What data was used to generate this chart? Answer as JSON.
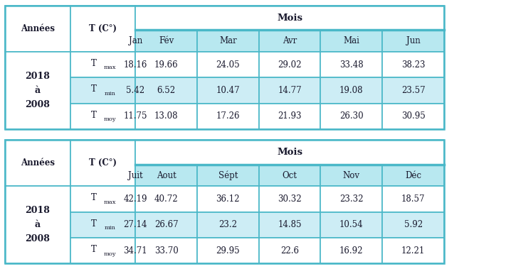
{
  "table1": {
    "months": [
      "Jan",
      "Fév",
      "Mar",
      "Avr",
      "Mai",
      "Jun"
    ],
    "years_label": [
      "2008",
      "à",
      "2018"
    ],
    "rows": [
      {
        "sub": "max",
        "values": [
          "18.16",
          "19.66",
          "24.05",
          "29.02",
          "33.48",
          "38.23"
        ]
      },
      {
        "sub": "min",
        "values": [
          "5.42",
          "6.52",
          "10.47",
          "14.77",
          "19.08",
          "23.57"
        ]
      },
      {
        "sub": "moy",
        "values": [
          "11.75",
          "13.08",
          "17.26",
          "21.93",
          "26.30",
          "30.95"
        ]
      }
    ]
  },
  "table2": {
    "months": [
      "Juit",
      "Aout",
      "Sépt",
      "Oct",
      "Nov",
      "Déc"
    ],
    "years_label": [
      "2008",
      "à",
      "2018"
    ],
    "rows": [
      {
        "sub": "max",
        "values": [
          "42.19",
          "40.72",
          "36.12",
          "30.32",
          "23.32",
          "18.57"
        ]
      },
      {
        "sub": "min",
        "values": [
          "27.14",
          "26.67",
          "23.2",
          "14.85",
          "10.54",
          "5.92"
        ]
      },
      {
        "sub": "moy",
        "values": [
          "34.71",
          "33.70",
          "29.95",
          "22.6",
          "16.92",
          "12.21"
        ]
      }
    ]
  },
  "colors": {
    "border": "#4ab8c8",
    "mois_bg": "#ffffff",
    "months_bg": "#b8e8f0",
    "row0_bg": "#ffffff",
    "row1_bg": "#cdedf5",
    "row2_bg": "#ffffff",
    "header_bg": "#ffffff",
    "text": "#1a1a2e"
  },
  "fig_bg": "#ffffff"
}
